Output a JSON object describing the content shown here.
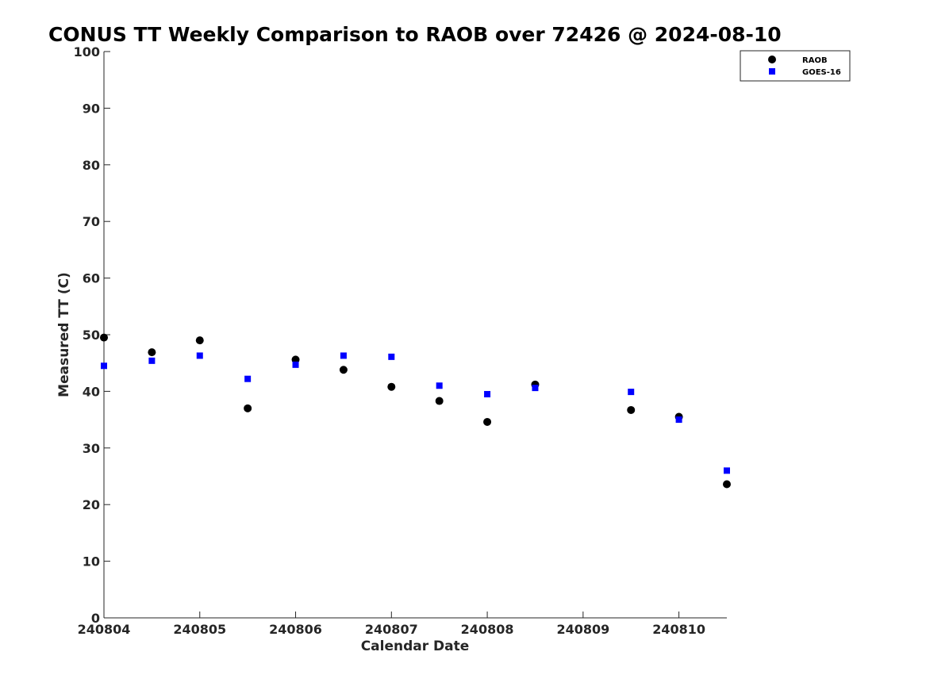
{
  "chart_data": {
    "type": "scatter",
    "title": "CONUS TT Weekly Comparison to RAOB over 72426 @ 2024-08-10",
    "xlabel": "Calendar Date",
    "ylabel": "Measured TT (C)",
    "xlim": [
      240804,
      240810.5
    ],
    "ylim": [
      0,
      100
    ],
    "x_ticks": [
      240804,
      240805,
      240806,
      240807,
      240808,
      240809,
      240810
    ],
    "x_tick_labels": [
      "240804",
      "240805",
      "240806",
      "240807",
      "240808",
      "240809",
      "240810"
    ],
    "y_ticks": [
      0,
      10,
      20,
      30,
      40,
      50,
      60,
      70,
      80,
      90,
      100
    ],
    "y_tick_labels": [
      "0",
      "10",
      "20",
      "30",
      "40",
      "50",
      "60",
      "70",
      "80",
      "90",
      "100"
    ],
    "grid": false,
    "legend_position": "top-right",
    "series": [
      {
        "name": "RAOB",
        "marker": "circle",
        "color": "#000000",
        "x": [
          240804,
          240804.5,
          240805,
          240805.5,
          240806,
          240806.5,
          240807,
          240807.5,
          240808,
          240808.5,
          240809.5,
          240810,
          240810.5
        ],
        "y": [
          49.5,
          46.9,
          49.0,
          37.0,
          45.6,
          43.8,
          40.8,
          38.3,
          34.6,
          41.2,
          36.7,
          35.5,
          23.6
        ]
      },
      {
        "name": "GOES-16",
        "marker": "square",
        "color": "#0000ff",
        "x": [
          240804,
          240804.5,
          240805,
          240805.5,
          240806,
          240806.5,
          240807,
          240807.5,
          240808,
          240808.5,
          240809.5,
          240810,
          240810.5
        ],
        "y": [
          44.5,
          45.4,
          46.3,
          42.2,
          44.7,
          46.3,
          46.1,
          41.0,
          39.5,
          40.6,
          39.9,
          35.0,
          26.0
        ]
      }
    ]
  }
}
